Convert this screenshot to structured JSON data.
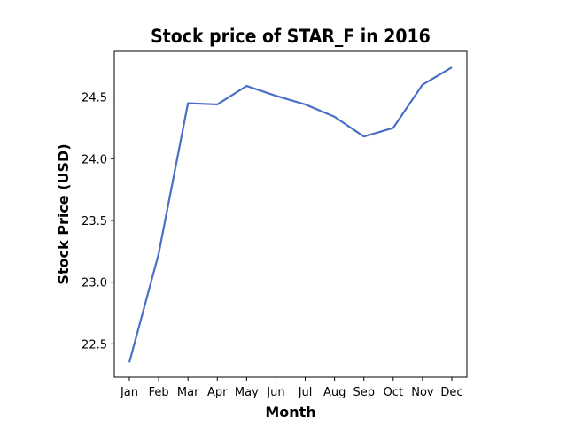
{
  "chart_data": {
    "type": "line",
    "title": "Stock price of STAR_F in 2016",
    "xlabel": "Month",
    "ylabel": "Stock Price (USD)",
    "categories": [
      "Jan",
      "Feb",
      "Mar",
      "Apr",
      "May",
      "Jun",
      "Jul",
      "Aug",
      "Sep",
      "Oct",
      "Nov",
      "Dec"
    ],
    "series": [
      {
        "values": [
          22.35,
          23.23,
          24.45,
          24.44,
          24.59,
          24.51,
          24.44,
          24.34,
          24.18,
          24.25,
          24.6,
          24.74
        ],
        "color": "#4a6fc7"
      }
    ],
    "ylim": [
      22.23,
      24.87
    ],
    "yticks": [
      22.5,
      23.0,
      23.5,
      24.0,
      24.5
    ],
    "ytick_labels": [
      "22.5",
      "23.0",
      "23.5",
      "24.0",
      "24.5"
    ],
    "grid": false,
    "legend": false
  }
}
